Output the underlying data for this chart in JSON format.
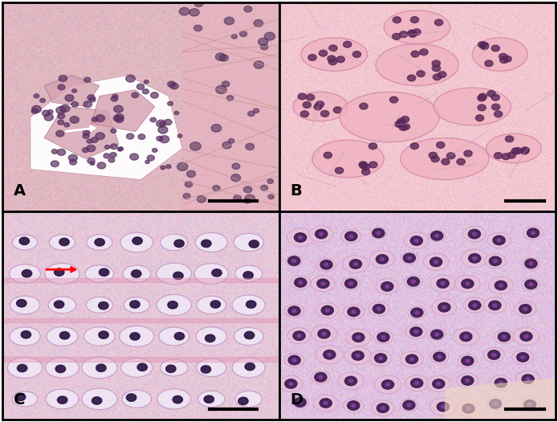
{
  "figure_width": 6.95,
  "figure_height": 5.25,
  "dpi": 100,
  "border_color": "#000000",
  "border_linewidth": 2,
  "label_A": "A",
  "label_B": "B",
  "label_C": "C",
  "label_D": "D",
  "label_fontsize": 14,
  "label_fontweight": "bold",
  "label_color": "#000000",
  "bg_color": "#ffffff",
  "panel_A_bg": "#e8c8d0",
  "panel_B_bg": "#f0c8d8",
  "panel_C_bg": "#e0b8cc",
  "panel_D_bg": "#d8b8e0",
  "scale_bar_color": "#000000",
  "divider_color": "#000000",
  "divider_linewidth": 2,
  "subplot_hspace": 0.0,
  "subplot_wspace": 0.0
}
